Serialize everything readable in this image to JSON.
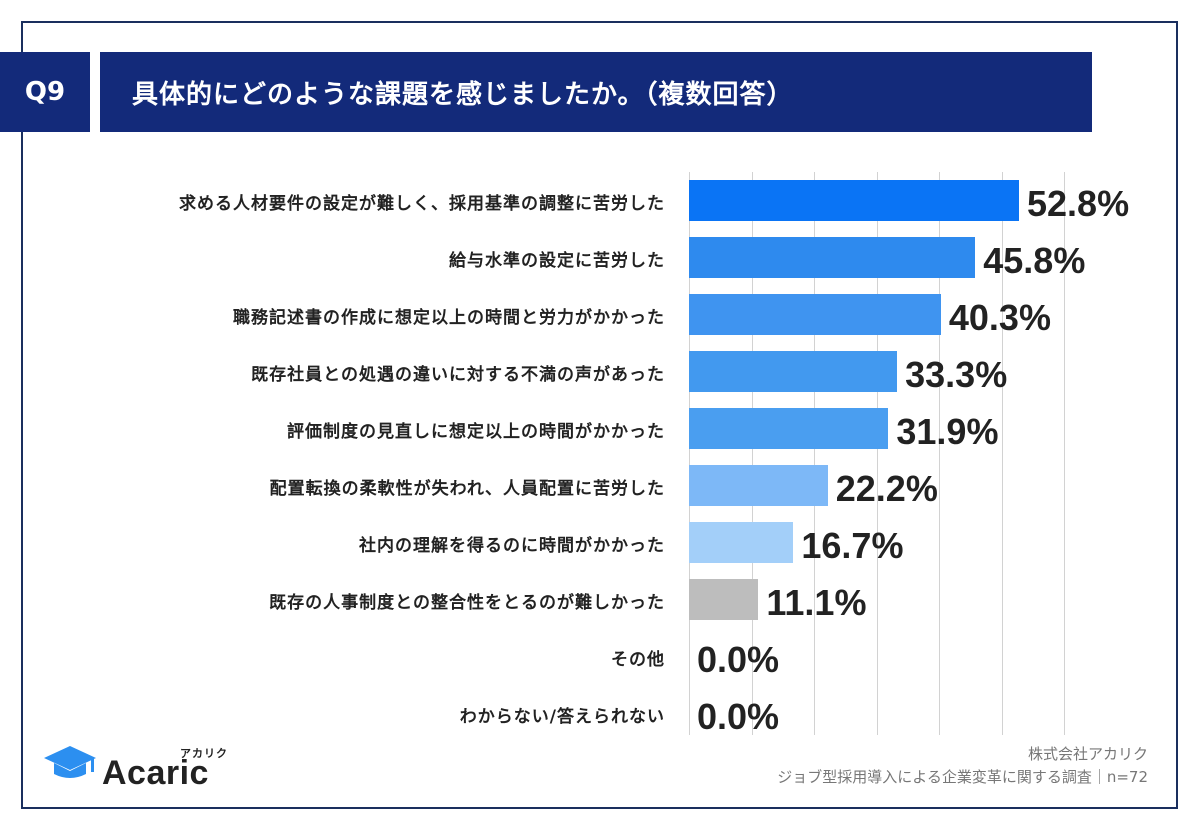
{
  "header": {
    "question_number": "Q9",
    "title": "具体的にどのような課題を感じましたか。（複数回答）"
  },
  "chart_data": {
    "type": "bar",
    "orientation": "horizontal",
    "categories": [
      "求める人材要件の設定が難しく、採用基準の調整に苦労した",
      "給与水準の設定に苦労した",
      "職務記述書の作成に想定以上の時間と労力がかかった",
      "既存社員との処遇の違いに対する不満の声があった",
      "評価制度の見直しに想定以上の時間がかかった",
      "配置転換の柔軟性が失われ、人員配置に苦労した",
      "社内の理解を得るのに時間がかかった",
      "既存の人事制度との整合性をとるのが難しかった",
      "その他",
      "わからない/答えられない"
    ],
    "values": [
      52.8,
      45.8,
      40.3,
      33.3,
      31.9,
      22.2,
      16.7,
      11.1,
      0.0,
      0.0
    ],
    "value_labels": [
      "52.8%",
      "45.8%",
      "40.3%",
      "33.3%",
      "31.9%",
      "22.2%",
      "16.7%",
      "11.1%",
      "0.0%",
      "0.0%"
    ],
    "bar_colors": [
      "#0a74f5",
      "#2e8aee",
      "#3f94f0",
      "#4299ef",
      "#4a9ef0",
      "#7db8f7",
      "#a3cff9",
      "#bdbdbd",
      "#bdbdbd",
      "#bdbdbd"
    ],
    "xlim": [
      0,
      60
    ],
    "grid": true
  },
  "logo": {
    "name": "Acaric",
    "kana": "アカリク"
  },
  "source": {
    "company": "株式会社アカリク",
    "survey": "ジョブ型採用導入による企業変革に関する調査｜n=72"
  }
}
